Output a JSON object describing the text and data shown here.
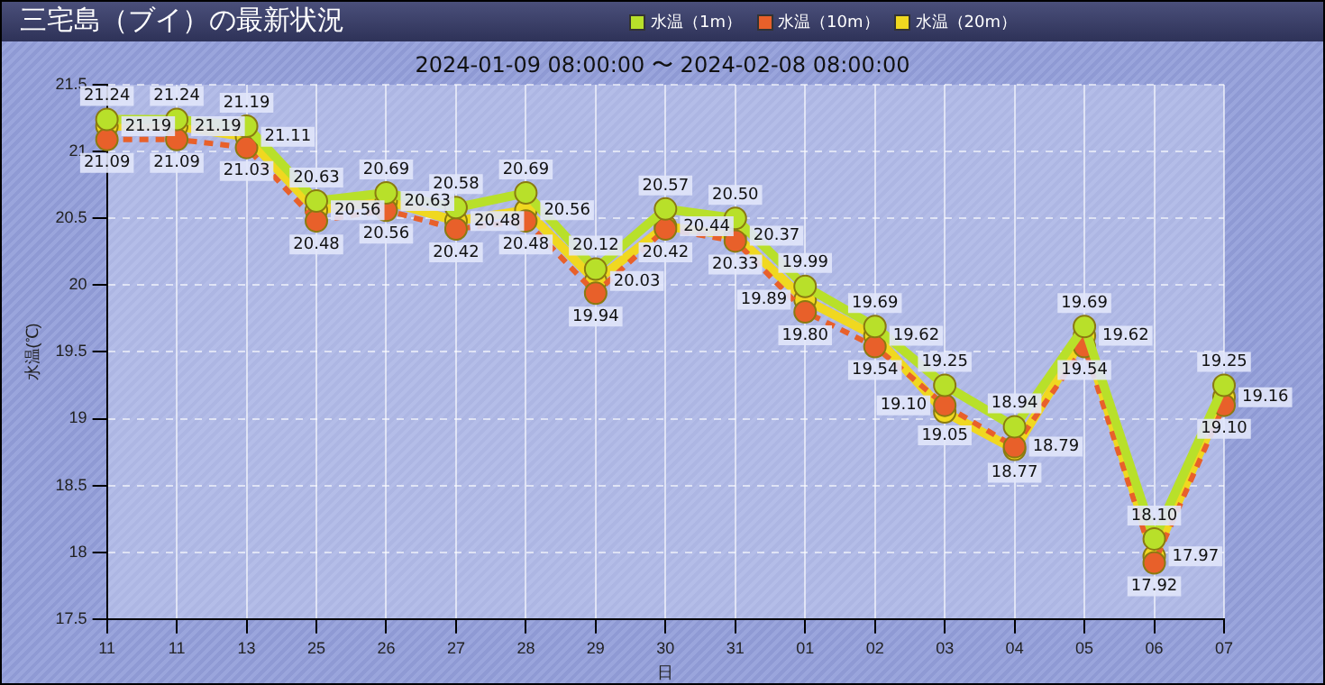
{
  "chart_data": {
    "type": "line",
    "title": "三宅島（ブイ）の最新状況",
    "subtitle": "2024-01-09 08:00:00 〜 2024-02-08 08:00:00",
    "xlabel": "日",
    "ylabel": "水温(℃)",
    "categories": [
      "11",
      "11",
      "13",
      "25",
      "26",
      "27",
      "28",
      "29",
      "30",
      "31",
      "01",
      "02",
      "03",
      "04",
      "05",
      "06",
      "07"
    ],
    "series": [
      {
        "name": "水温（1m）",
        "color": "#b8e02a",
        "line_style": "solid",
        "values": [
          21.24,
          21.24,
          21.19,
          20.63,
          20.69,
          20.58,
          20.69,
          20.12,
          20.57,
          20.5,
          19.99,
          19.69,
          19.25,
          18.94,
          19.69,
          18.1,
          19.25
        ],
        "value_labels": [
          "21.24",
          "21.24",
          "21.19",
          "20.63",
          "20.69",
          "20.58",
          "20.69",
          "20.12",
          "20.57",
          "20.50",
          "19.99",
          "19.69",
          "19.25",
          "18.94",
          "19.69",
          "18.10",
          "19.25"
        ]
      },
      {
        "name": "水温（10m）",
        "color": "#e8602a",
        "line_style": "dashed",
        "values": [
          21.09,
          21.09,
          21.03,
          20.48,
          20.56,
          20.42,
          20.48,
          19.94,
          20.42,
          20.33,
          19.8,
          19.54,
          19.1,
          18.79,
          19.54,
          17.92,
          19.1
        ],
        "value_labels": [
          "21.09",
          "21.09",
          "21.03",
          "20.48",
          "20.56",
          "20.42",
          "20.48",
          "19.94",
          "20.42",
          "20.33",
          "19.80",
          "19.54",
          "19.10",
          "18.79",
          "19.54",
          "17.92",
          "19.10"
        ]
      },
      {
        "name": "水温（20m）",
        "color": "#f0d820",
        "line_style": "solid",
        "values": [
          21.19,
          21.19,
          21.11,
          20.56,
          20.63,
          20.48,
          20.56,
          20.03,
          20.44,
          20.37,
          19.89,
          19.62,
          19.05,
          18.77,
          19.62,
          17.97,
          19.16
        ],
        "value_labels": [
          "21.19",
          "21.19",
          "21.11",
          "20.56",
          "20.63",
          "20.48",
          "20.56",
          "20.03",
          "20.44",
          "20.37",
          "19.89",
          "19.62",
          "19.05",
          "18.77",
          "19.62",
          "17.97",
          "19.16"
        ]
      }
    ],
    "ylim": [
      17.5,
      21.5
    ],
    "yticks": [
      17.5,
      18,
      18.5,
      19,
      19.5,
      20,
      20.5,
      21,
      21.5
    ],
    "grid": true,
    "legend": "top right",
    "marker": "circle"
  }
}
